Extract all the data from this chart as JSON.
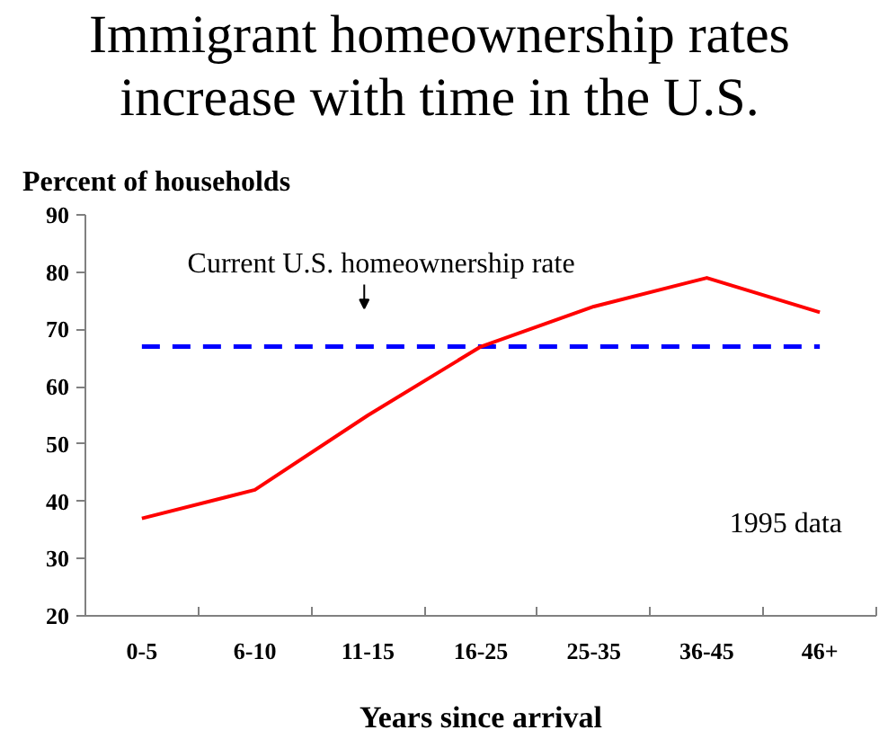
{
  "chart_data": {
    "type": "line",
    "title": "Immigrant homeownership rates increase with time in the U.S.",
    "ylabel": "Percent of households",
    "xlabel": "Years since arrival",
    "categories": [
      "0-5",
      "6-10",
      "11-15",
      "16-25",
      "25-35",
      "36-45",
      "46+"
    ],
    "series": [
      {
        "color": "#ff0000",
        "values": [
          37,
          42,
          55,
          67,
          74,
          79,
          73
        ]
      }
    ],
    "ylim": [
      20,
      90
    ],
    "yticks": [
      20,
      30,
      40,
      50,
      60,
      70,
      80,
      90
    ],
    "ref_lines": [
      {
        "axis": "y",
        "value": 67,
        "label": "Current U.S. homeownership rate",
        "color": "#0000ff",
        "line_style": "dashed"
      }
    ],
    "annotations": [
      "1995 data"
    ],
    "grid": false,
    "line_style": "solid"
  }
}
